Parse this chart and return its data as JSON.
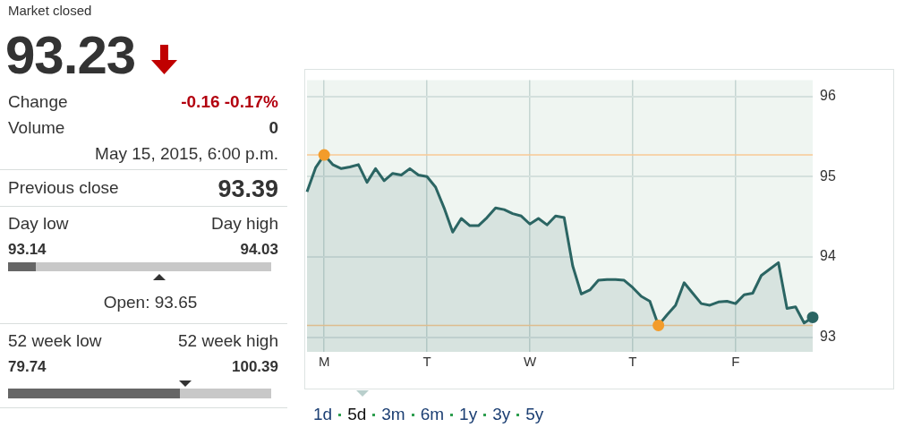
{
  "chart_data": [
    {
      "type": "other",
      "annotations": [
        "Market closed",
        "93.23",
        "Change",
        "-0.16 -0.17%",
        "Volume",
        "0",
        "May 15, 2015, 6:00 p.m.",
        "Previous close",
        "93.39",
        "Day low",
        "Day high",
        "93.14",
        "94.03",
        "Open: 93.65",
        "52 week low",
        "52 week high",
        "79.74",
        "100.39"
      ]
    },
    {
      "type": "area",
      "categories": [
        null,
        null,
        "M",
        null,
        null,
        null,
        null,
        null,
        null,
        null,
        null,
        null,
        null,
        null,
        "T",
        null,
        null,
        null,
        null,
        null,
        null,
        null,
        null,
        null,
        null,
        null,
        "W",
        null,
        null,
        null,
        null,
        null,
        null,
        null,
        null,
        null,
        null,
        null,
        "T",
        null,
        null,
        null,
        null,
        null,
        null,
        null,
        null,
        null,
        null,
        null,
        "F",
        null,
        null,
        null,
        null,
        null,
        null,
        null,
        null,
        null
      ],
      "series": [
        {
          "color": "#2b6563",
          "colors": [
            null,
            null,
            "#f39c2b",
            null,
            null,
            null,
            null,
            null,
            null,
            null,
            null,
            null,
            null,
            null,
            null,
            null,
            null,
            null,
            null,
            null,
            null,
            null,
            null,
            null,
            null,
            null,
            null,
            null,
            null,
            null,
            null,
            null,
            null,
            null,
            null,
            null,
            null,
            null,
            null,
            null,
            null,
            "#f39c2b",
            null,
            null,
            null,
            null,
            null,
            null,
            null,
            null,
            null,
            null,
            null,
            null,
            null,
            null,
            null,
            null,
            null,
            "#2b6563"
          ],
          "values": [
            94.81,
            95.11,
            95.27,
            95.15,
            95.1,
            95.12,
            95.15,
            94.93,
            95.1,
            94.95,
            95.04,
            95.02,
            95.1,
            95.02,
            95.0,
            94.87,
            94.61,
            94.31,
            94.48,
            94.39,
            94.39,
            94.49,
            94.61,
            94.59,
            94.54,
            94.51,
            94.41,
            94.48,
            94.4,
            94.51,
            94.49,
            93.89,
            93.54,
            93.59,
            93.71,
            93.72,
            93.72,
            93.71,
            93.62,
            93.51,
            93.45,
            93.15,
            93.28,
            93.4,
            93.68,
            93.55,
            93.42,
            93.4,
            93.44,
            93.45,
            93.42,
            93.53,
            93.55,
            93.77,
            93.85,
            93.93,
            93.36,
            93.38,
            93.18,
            93.25
          ]
        }
      ],
      "ylim": [
        92.82,
        96.2
      ],
      "yticks": [
        93,
        94,
        95,
        96
      ],
      "grid": true,
      "ref_lines": [
        {
          "axis": "y",
          "value": 95.27,
          "color": "#f8c995"
        },
        {
          "axis": "y",
          "value": 93.15,
          "color": "#f8c995"
        }
      ],
      "annotations": [
        "1d",
        "5d",
        "3m",
        "6m",
        "1y",
        "3y",
        "5y"
      ]
    }
  ]
}
